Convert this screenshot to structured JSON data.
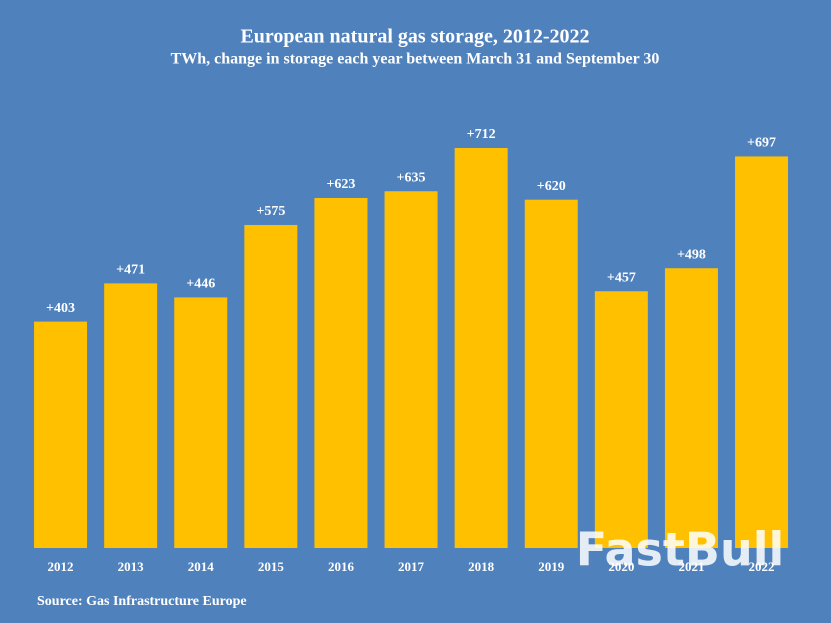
{
  "chart_data": {
    "type": "bar",
    "title": "European natural gas storage, 2012-2022",
    "subtitle": "TWh, change in storage each year between March 31 and September 30",
    "categories": [
      "2012",
      "2013",
      "2014",
      "2015",
      "2016",
      "2017",
      "2018",
      "2019",
      "2020",
      "2021",
      "2022"
    ],
    "values": [
      403,
      471,
      446,
      575,
      623,
      635,
      712,
      620,
      457,
      498,
      697
    ],
    "value_labels": [
      "+403",
      "+471",
      "+446",
      "+575",
      "+623",
      "+635",
      "+712",
      "+620",
      "+457",
      "+498",
      "+697"
    ],
    "color": "#ffc000",
    "source": "Source: Gas Infrastructure Europe"
  },
  "watermark": "FastBull"
}
